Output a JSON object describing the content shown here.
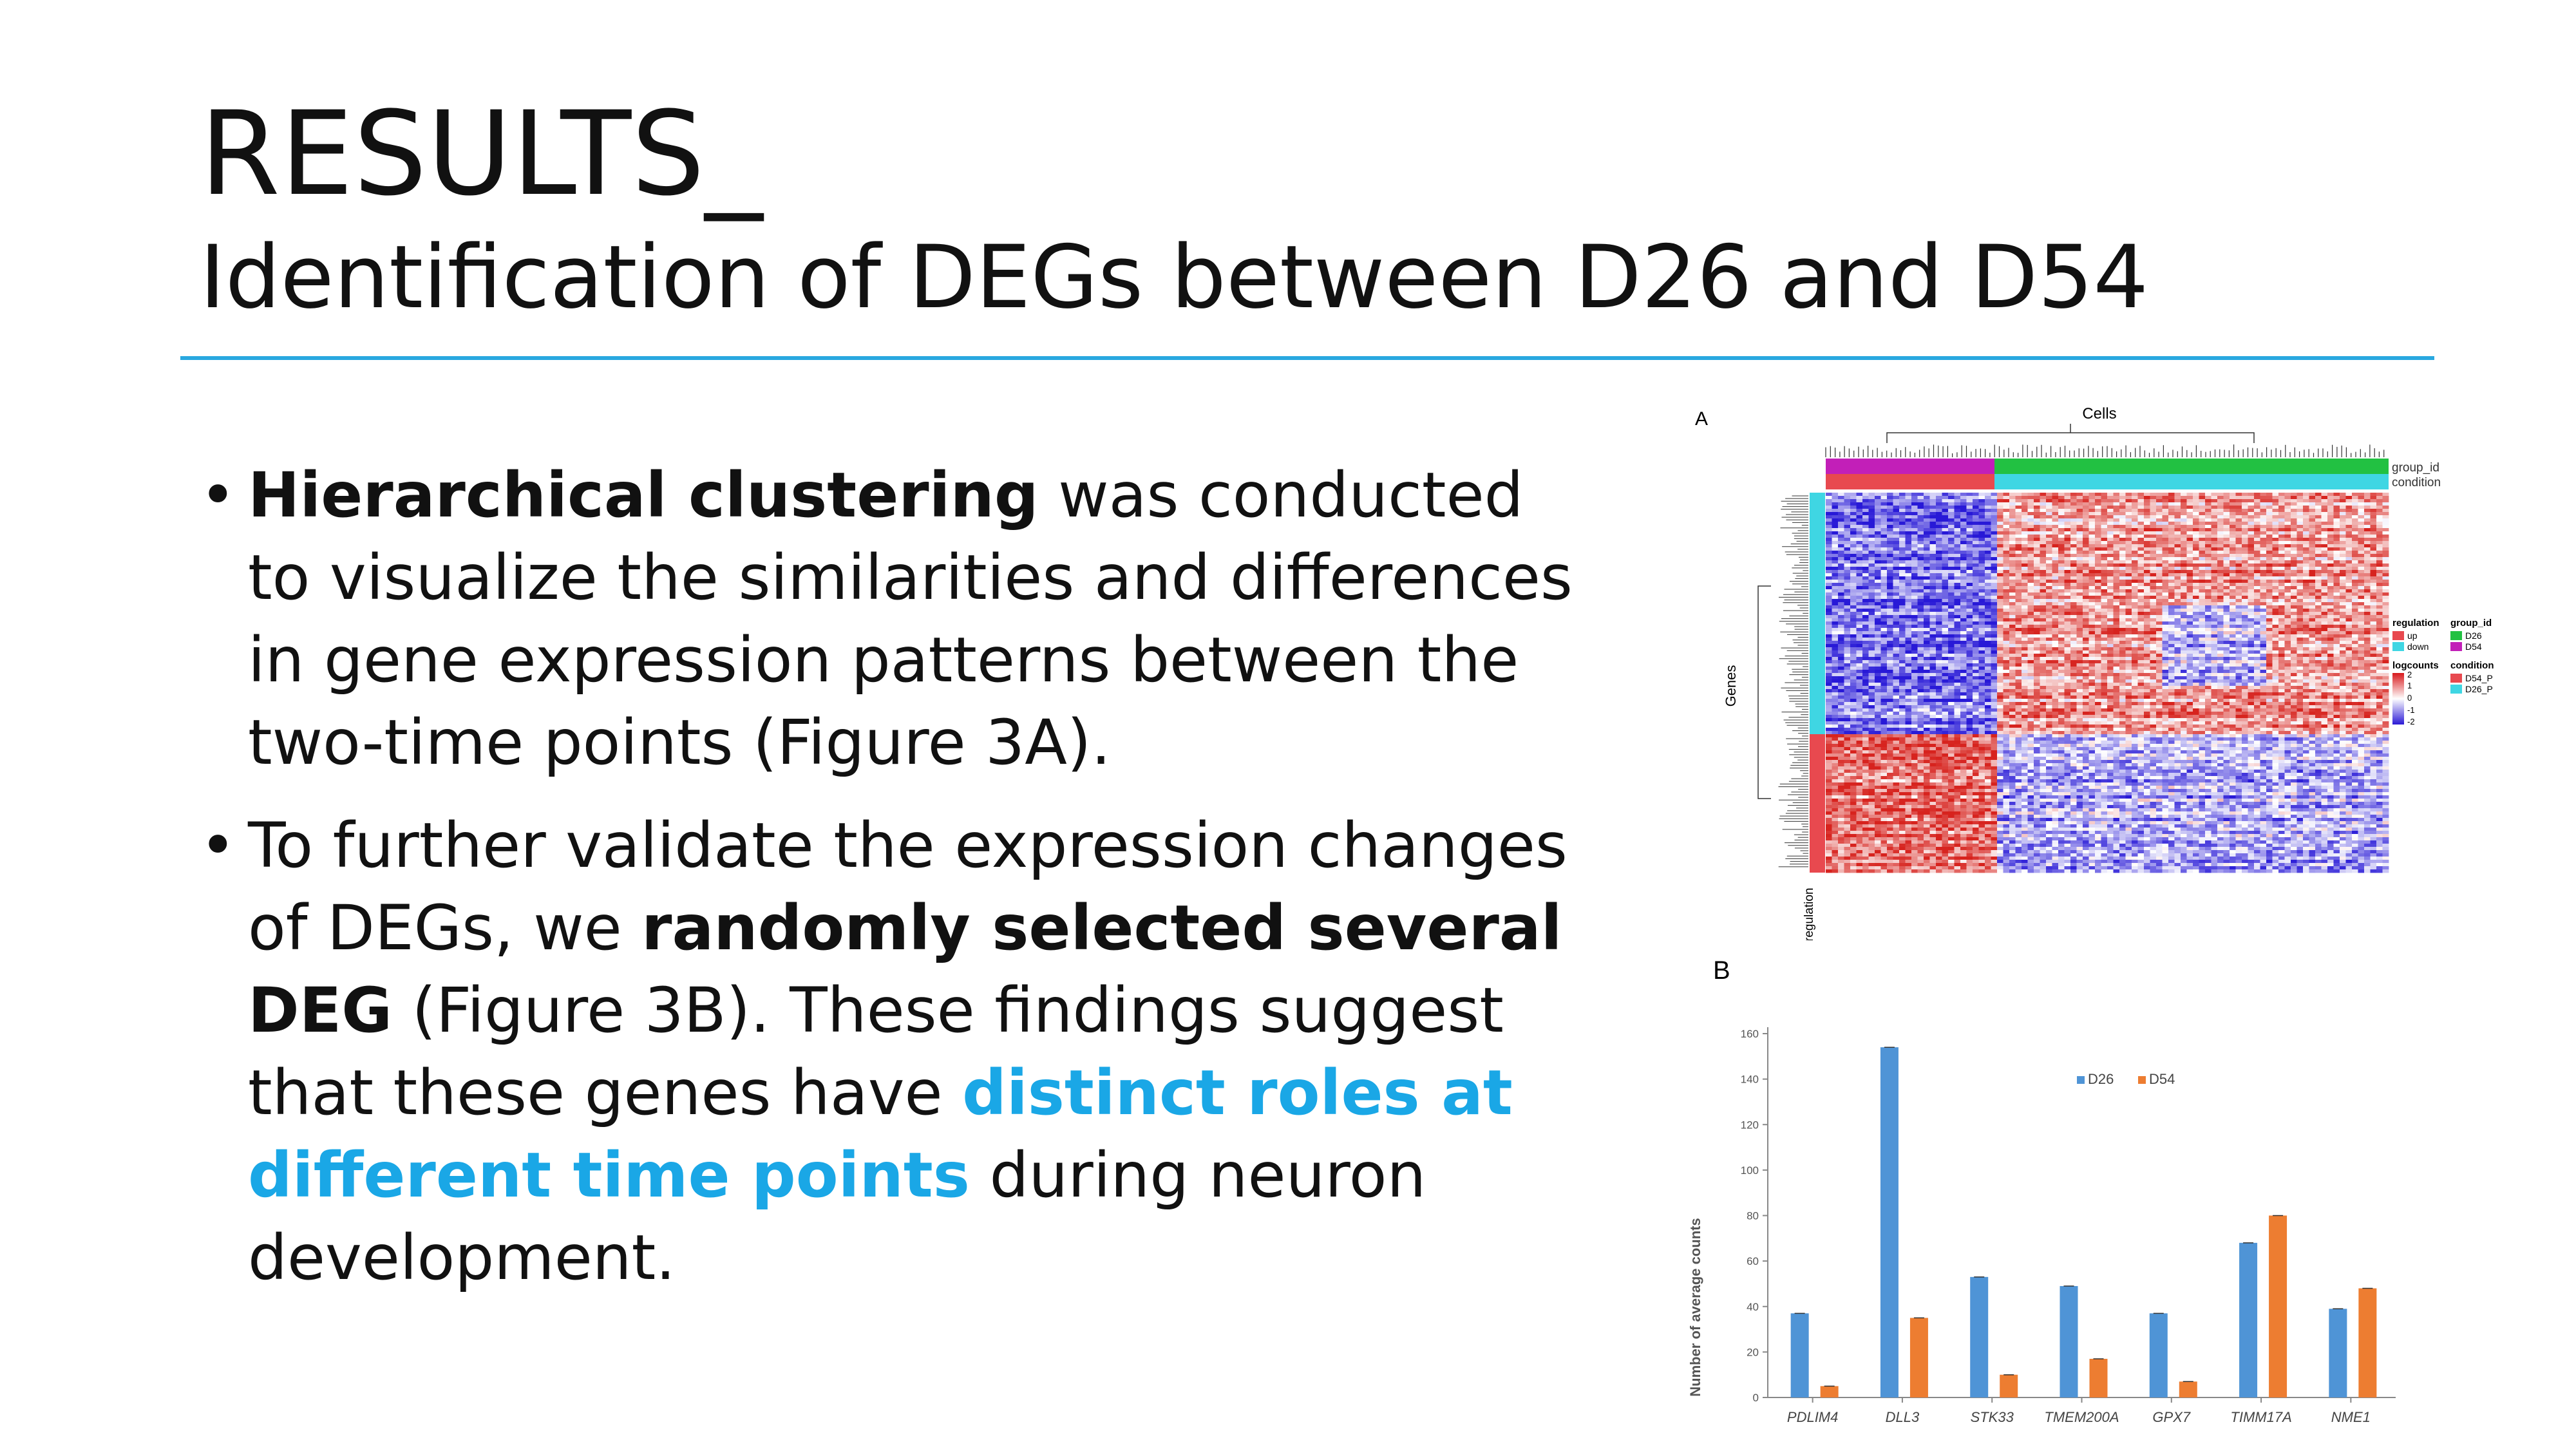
{
  "slide": {
    "title": "RESULTS_",
    "subtitle": "Identification of DEGs between D26 and D54"
  },
  "bullets": [
    {
      "b1": "Hierarchical clustering",
      "t1": " was conducted to visualize the similarities and differences in gene expression patterns between the two-time points (Figure 3A)."
    },
    {
      "t1": "To further validate the expression changes of DEGs, we ",
      "b1": "randomly selected several DEG",
      "t2": " (Figure 3B). These findings suggest that these genes have ",
      "hl": "distinct roles at different time points",
      "t3": " during neuron development."
    }
  ],
  "figure_a": {
    "panel_label": "A",
    "top_label": "Cells",
    "track_labels": [
      "group_id",
      "condition"
    ],
    "row_label": "Genes",
    "bottom_label": "regulation",
    "legend": {
      "regulation_title": "regulation",
      "regulation_items": [
        {
          "label": "up",
          "color": "#e8494f"
        },
        {
          "label": "down",
          "color": "#3fd6e3"
        }
      ],
      "group_title": "group_id",
      "group_items": [
        {
          "label": "D26",
          "color": "#22c142"
        },
        {
          "label": "D54",
          "color": "#c21fb8"
        }
      ],
      "logcounts_title": "logcounts",
      "logcounts_ticks": [
        "2",
        "1",
        "0",
        "-1",
        "-2"
      ],
      "condition_title": "condition",
      "condition_items": [
        {
          "label": "D54_P",
          "color": "#e8494f"
        },
        {
          "label": "D26_P",
          "color": "#3fd6e3"
        }
      ]
    }
  },
  "figure_b": {
    "panel_label": "B"
  },
  "chart_data": {
    "type": "bar",
    "categories": [
      "PDLIM4",
      "DLL3",
      "STK33",
      "TMEM200A",
      "GPX7",
      "TIMM17A",
      "NME1"
    ],
    "series": [
      {
        "name": "D26",
        "color": "#4f94d6",
        "values": [
          37,
          154,
          53,
          49,
          37,
          68,
          39
        ]
      },
      {
        "name": "D54",
        "color": "#ed7d31",
        "values": [
          5,
          35,
          10,
          17,
          7,
          80,
          48
        ]
      }
    ],
    "ylabel": "Number of average counts",
    "xlabel": "",
    "ylim": [
      0,
      160
    ],
    "yticks": [
      0,
      20,
      40,
      60,
      80,
      100,
      120,
      140,
      160
    ],
    "legend_position": "top-right"
  }
}
